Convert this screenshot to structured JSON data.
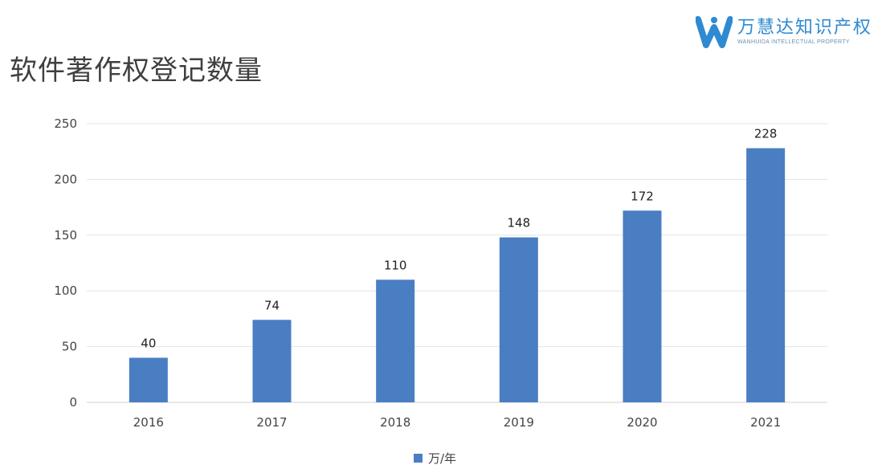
{
  "header": {
    "title": "软件著作权登记数量"
  },
  "logo": {
    "name_cn": "万慧达知识产权",
    "name_en": "WANHUIDA INTELLECTUAL PROPERTY",
    "color": "#2f8ad1"
  },
  "chart_data": {
    "type": "bar",
    "title": "软件著作权登记数量",
    "categories": [
      "2016",
      "2017",
      "2018",
      "2019",
      "2020",
      "2021"
    ],
    "series": [
      {
        "name": "万/年",
        "values": [
          40,
          74,
          110,
          148,
          172,
          228
        ]
      }
    ],
    "xlabel": "",
    "ylabel": "",
    "ylim": [
      0,
      250
    ],
    "yticks": [
      0,
      50,
      100,
      150,
      200,
      250
    ],
    "grid": true,
    "legend": "bottom",
    "data_labels": true,
    "bar_color": "#4a7ec3"
  }
}
